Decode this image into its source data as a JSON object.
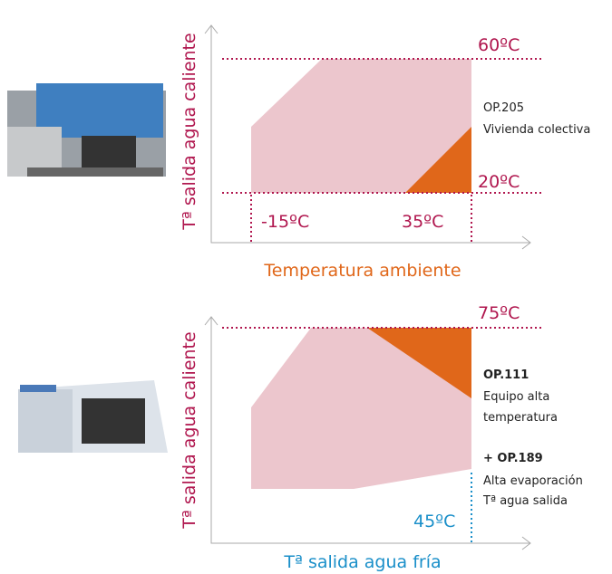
{
  "diagrams": [
    {
      "y_axis_label": "Tª salida agua caliente",
      "x_axis_label": "Temperatura ambiente",
      "top_temperature": "60ºC",
      "bottom_temperature": "20ºC",
      "left_temperature": "-15ºC",
      "right_temperature": "35ºC",
      "options": [
        {
          "code": "OP.205",
          "description": [
            "Vivienda colectiva"
          ]
        }
      ]
    },
    {
      "y_axis_label": "Tª salida agua caliente",
      "x_axis_label": "Tª salida agua fría",
      "top_temperature": "75ºC",
      "right_temperature": "45ºC",
      "options": [
        {
          "code": "OP.111",
          "description": [
            "Equipo alta",
            "temperatura"
          ]
        },
        {
          "code": "+ OP.189",
          "description": [
            "Alta evaporación",
            "Tª agua salida"
          ]
        }
      ]
    }
  ]
}
